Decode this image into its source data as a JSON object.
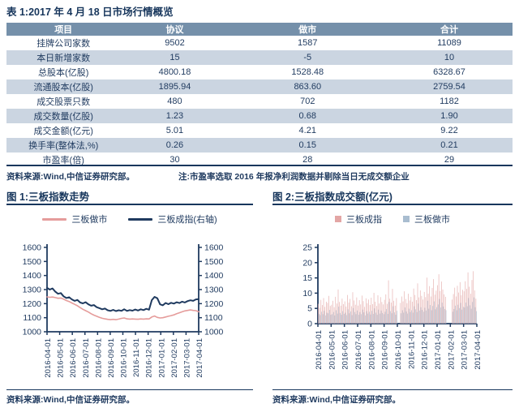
{
  "colors": {
    "navy": "#1f3a5f",
    "title_navy": "#17365c",
    "pink_line": "#e59c9b",
    "bar_pink": "#e3a6a5",
    "bar_navy": "#a9bdd0",
    "table_header_bg": "#7590aa",
    "table_alt_row_bg": "#cbd5e1",
    "white": "#ffffff"
  },
  "table1": {
    "title": "表 1:2017 年 4 月 18 日市场行情概览",
    "columns": [
      "项目",
      "协议",
      "做市",
      "合计"
    ],
    "rows": [
      [
        "挂牌公司家数",
        "9502",
        "1587",
        "11089"
      ],
      [
        "本日新增家数",
        "15",
        "-5",
        "10"
      ],
      [
        "总股本(亿股)",
        "4800.18",
        "1528.48",
        "6328.67"
      ],
      [
        "流通股本(亿股)",
        "1895.94",
        "863.60",
        "2759.54"
      ],
      [
        "成交股票只数",
        "480",
        "702",
        "1182"
      ],
      [
        "成交数量(亿股)",
        "1.23",
        "0.68",
        "1.90"
      ],
      [
        "成交金额(亿元)",
        "5.01",
        "4.21",
        "9.22"
      ],
      [
        "换手率(整体法,%)",
        "0.26",
        "0.15",
        "0.21"
      ],
      [
        "市盈率(倍)",
        "30",
        "28",
        "29"
      ]
    ],
    "source": "资料来源:Wind,中信证券研究部。",
    "note": "注:市盈率选取 2016 年报净利润数据并剔除当日无成交额企业"
  },
  "chart_data": [
    {
      "type": "line",
      "title": "图 1:三板指数走势",
      "source": "资料来源:Wind,中信证券研究部。",
      "legend": [
        {
          "label": "三板做市",
          "color": "#e59c9b",
          "swatch": "line"
        },
        {
          "label": "三板成指(右轴)",
          "color": "#1f3a5f",
          "swatch": "line"
        }
      ],
      "x_tick_labels": [
        "2016-04-01",
        "2016-05-01",
        "2016-06-01",
        "2016-07-01",
        "2016-08-01",
        "2016-09-01",
        "2016-10-01",
        "2016-11-01",
        "2016-12-01",
        "2017-01-01",
        "2017-02-01",
        "2017-03-01",
        "2017-04-01"
      ],
      "y_ticks": [
        1000,
        1100,
        1200,
        1300,
        1400,
        1500,
        1600
      ],
      "ylim": [
        1000,
        1600
      ],
      "grid": false,
      "legend_position": "top",
      "series": [
        {
          "name": "三板做市",
          "axis": "left",
          "color": "#e59c9b",
          "width": 1.6,
          "values": [
            1248,
            1245,
            1247,
            1243,
            1238,
            1240,
            1232,
            1222,
            1215,
            1205,
            1195,
            1185,
            1172,
            1160,
            1150,
            1140,
            1128,
            1118,
            1110,
            1102,
            1096,
            1092,
            1088,
            1086,
            1088,
            1086,
            1090,
            1095,
            1098,
            1092,
            1090,
            1091,
            1090,
            1089,
            1091,
            1090,
            1092,
            1091,
            1105,
            1112,
            1102,
            1098,
            1100,
            1105,
            1110,
            1115,
            1120,
            1128,
            1135,
            1142,
            1148,
            1152,
            1155,
            1152,
            1150,
            1142
          ]
        },
        {
          "name": "三板成指(右轴)",
          "axis": "right",
          "color": "#1f3a5f",
          "width": 2,
          "values": [
            1312,
            1300,
            1308,
            1285,
            1270,
            1275,
            1252,
            1240,
            1246,
            1230,
            1220,
            1226,
            1208,
            1202,
            1210,
            1195,
            1185,
            1190,
            1175,
            1168,
            1160,
            1165,
            1153,
            1148,
            1156,
            1147,
            1153,
            1149,
            1160,
            1148,
            1154,
            1150,
            1158,
            1151,
            1160,
            1154,
            1163,
            1157,
            1225,
            1248,
            1238,
            1195,
            1188,
            1205,
            1196,
            1206,
            1200,
            1210,
            1204,
            1214,
            1208,
            1218,
            1224,
            1220,
            1230,
            1232
          ]
        }
      ]
    },
    {
      "type": "bar",
      "title": "图 2:三板指数成交额(亿元)",
      "source": "资料来源:Wind,中信证券研究部。",
      "legend": [
        {
          "label": "三板成指",
          "color": "#e3a6a5",
          "swatch": "square"
        },
        {
          "label": "三板做市",
          "color": "#a9bdd0",
          "swatch": "square"
        }
      ],
      "x_tick_labels": [
        "2016-04-01",
        "2016-05-01",
        "2016-06-01",
        "2016-07-01",
        "2016-08-01",
        "2016-09-01",
        "2016-10-01",
        "2016-11-01",
        "2016-12-01",
        "2017-01-01",
        "2017-02-01",
        "2017-03-01",
        "2017-04-01"
      ],
      "y_ticks": [
        0,
        5,
        10,
        15,
        20,
        25
      ],
      "ylim": [
        0,
        25
      ],
      "grid": false,
      "legend_position": "top",
      "series": [
        {
          "name": "三板成指",
          "color": "#e3a6a5",
          "values": [
            6.5,
            5.2,
            7.8,
            6.1,
            8.4,
            5.5,
            7.2,
            6.8,
            9.1,
            5.8,
            6.2,
            7.5,
            5.4,
            8.8,
            6.6,
            11.2,
            7.1,
            5.9,
            8.2,
            6.4,
            7.3,
            5.6,
            9.4,
            6.9,
            8.1,
            5.7,
            10.3,
            7.6,
            6.2,
            8.6,
            5.9,
            7.7,
            6.3,
            9.2,
            7.4,
            5.5,
            8.3,
            6.7,
            7.9,
            6.1,
            8.5,
            6.4,
            10.1,
            7.2,
            5.8,
            9.3,
            6.6,
            8.7,
            7.1,
            6.3,
            7.8,
            9.6,
            6.5,
            14.2,
            8.2,
            6.9,
            11.4,
            7.5,
            5.9,
            8.4,
            0,
            0,
            6.8,
            8.9,
            7.3,
            10.6,
            8.1,
            6.7,
            9.8,
            7.6,
            8.8,
            7.2,
            11.5,
            9.4,
            7.7,
            13.2,
            8.6,
            10.9,
            9.1,
            7.9,
            10.4,
            8.7,
            15.1,
            9.8,
            12.3,
            8.9,
            11.7,
            14.6,
            9.5,
            10.8,
            12.6,
            16.2,
            10.7,
            13.8,
            11.2,
            9.6,
            8.8,
            0,
            0,
            0,
            0,
            7.9,
            9.7,
            11.8,
            8.9,
            12.4,
            10.2,
            13.6,
            9.3,
            11.1,
            10.6,
            13.9,
            11.4,
            16.8,
            12.1,
            9.8,
            14.3,
            17.2,
            10.9,
            8.2
          ]
        },
        {
          "name": "三板做市",
          "color": "#a9bdd0",
          "values": [
            3.2,
            2.8,
            3.9,
            3.1,
            4.2,
            2.7,
            3.6,
            3.4,
            4.5,
            2.9,
            3.1,
            3.8,
            2.7,
            4.4,
            3.3,
            5.6,
            3.5,
            2.9,
            4.1,
            3.2,
            3.6,
            2.8,
            4.7,
            3.4,
            4.0,
            2.8,
            5.1,
            3.8,
            3.1,
            4.3,
            2.9,
            3.8,
            3.1,
            4.6,
            3.7,
            2.7,
            4.1,
            3.3,
            3.9,
            3.0,
            4.2,
            3.2,
            5.0,
            3.6,
            2.9,
            4.6,
            3.3,
            4.3,
            3.5,
            3.1,
            3.9,
            4.8,
            3.2,
            7.1,
            4.1,
            3.4,
            5.7,
            3.7,
            2.9,
            4.2,
            0,
            0,
            3.4,
            4.4,
            3.6,
            5.3,
            4.0,
            3.3,
            4.9,
            3.8,
            4.4,
            3.6,
            5.7,
            4.7,
            3.8,
            6.6,
            4.3,
            5.4,
            4.5,
            3.9,
            5.2,
            4.3,
            7.5,
            4.9,
            6.1,
            4.4,
            5.8,
            7.3,
            4.7,
            5.4,
            6.3,
            8.1,
            5.3,
            6.9,
            5.6,
            4.8,
            4.4,
            0,
            0,
            0,
            0,
            3.9,
            4.8,
            5.9,
            4.4,
            6.2,
            5.1,
            6.8,
            4.6,
            5.5,
            5.3,
            6.9,
            5.7,
            8.4,
            6.0,
            4.9,
            7.1,
            8.6,
            5.4,
            4.1
          ]
        }
      ]
    }
  ]
}
